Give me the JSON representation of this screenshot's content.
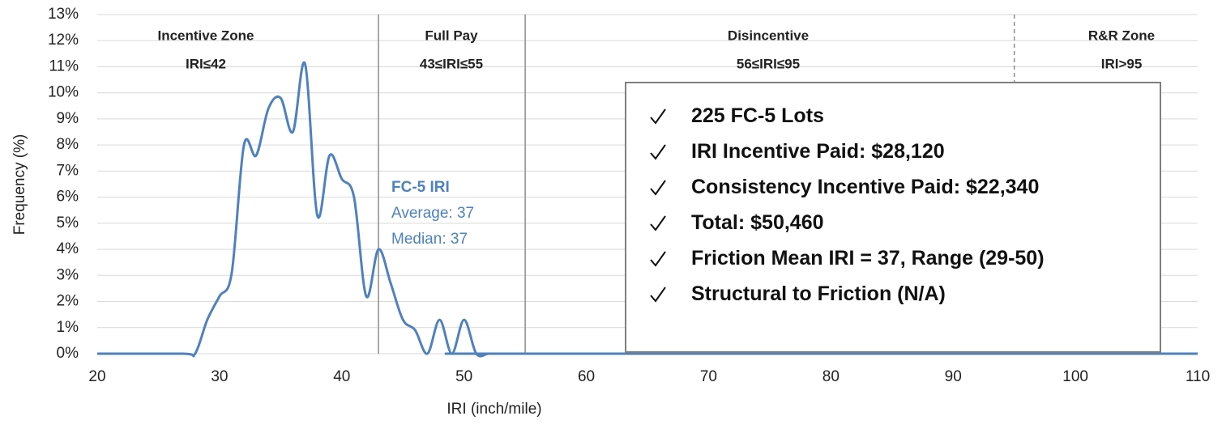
{
  "chart_data": {
    "type": "line",
    "x_label": "IRI (inch/mile)",
    "y_label": "Frequency (%)",
    "x": [
      20,
      27,
      28,
      29,
      30,
      31,
      32,
      33,
      34,
      35,
      36,
      37,
      38,
      39,
      40,
      41,
      42,
      43,
      44,
      45,
      46,
      47,
      48,
      49,
      50,
      51,
      52,
      53,
      110
    ],
    "series": [
      {
        "name": "FC-5 IRI",
        "color": "#4f81bd",
        "values": [
          0,
          0,
          0,
          1.3,
          2.2,
          3.1,
          8.0,
          7.6,
          9.4,
          9.8,
          8.5,
          11.1,
          5.3,
          7.6,
          6.7,
          6.0,
          2.2,
          4.0,
          2.7,
          1.3,
          0.9,
          0.0,
          1.3,
          0.0,
          1.3,
          0.0,
          0,
          0,
          0
        ]
      }
    ],
    "xlim": [
      20,
      110
    ],
    "xticks": [
      20,
      30,
      40,
      50,
      60,
      70,
      80,
      90,
      100,
      110
    ],
    "ylim": [
      0,
      13
    ],
    "yticks": [
      {
        "value": 0,
        "label": "0%"
      },
      {
        "value": 1,
        "label": "1%"
      },
      {
        "value": 2,
        "label": "2%"
      },
      {
        "value": 3,
        "label": "3%"
      },
      {
        "value": 4,
        "label": "4%"
      },
      {
        "value": 5,
        "label": "5%"
      },
      {
        "value": 6,
        "label": "6%"
      },
      {
        "value": 7,
        "label": "7%"
      },
      {
        "value": 8,
        "label": "8%"
      },
      {
        "value": 9,
        "label": "9%"
      },
      {
        "value": 10,
        "label": "10%"
      },
      {
        "value": 11,
        "label": "11%"
      },
      {
        "value": 12,
        "label": "12%"
      },
      {
        "value": 13,
        "label": "13%"
      }
    ],
    "grid": true,
    "zones": [
      {
        "name": "Incentive Zone",
        "range": "IRI≤42"
      },
      {
        "name": "Full Pay",
        "range": "43≤IRI≤55"
      },
      {
        "name": "Disincentive",
        "range": "56≤IRI≤95"
      },
      {
        "name": "R&R Zone",
        "range": "IRI>95"
      }
    ],
    "zone_lines": [
      43,
      55,
      95
    ],
    "annotation": [
      "FC-5 IRI",
      "Average: 37",
      "Median: 37"
    ],
    "summary": [
      "225 FC-5 Lots",
      "IRI Incentive Paid: $28,120",
      "Consistency Incentive Paid: $22,340",
      "Total: $50,460",
      "Friction Mean IRI = 37, Range (29-50)",
      "Structural to Friction (N/A)"
    ]
  }
}
